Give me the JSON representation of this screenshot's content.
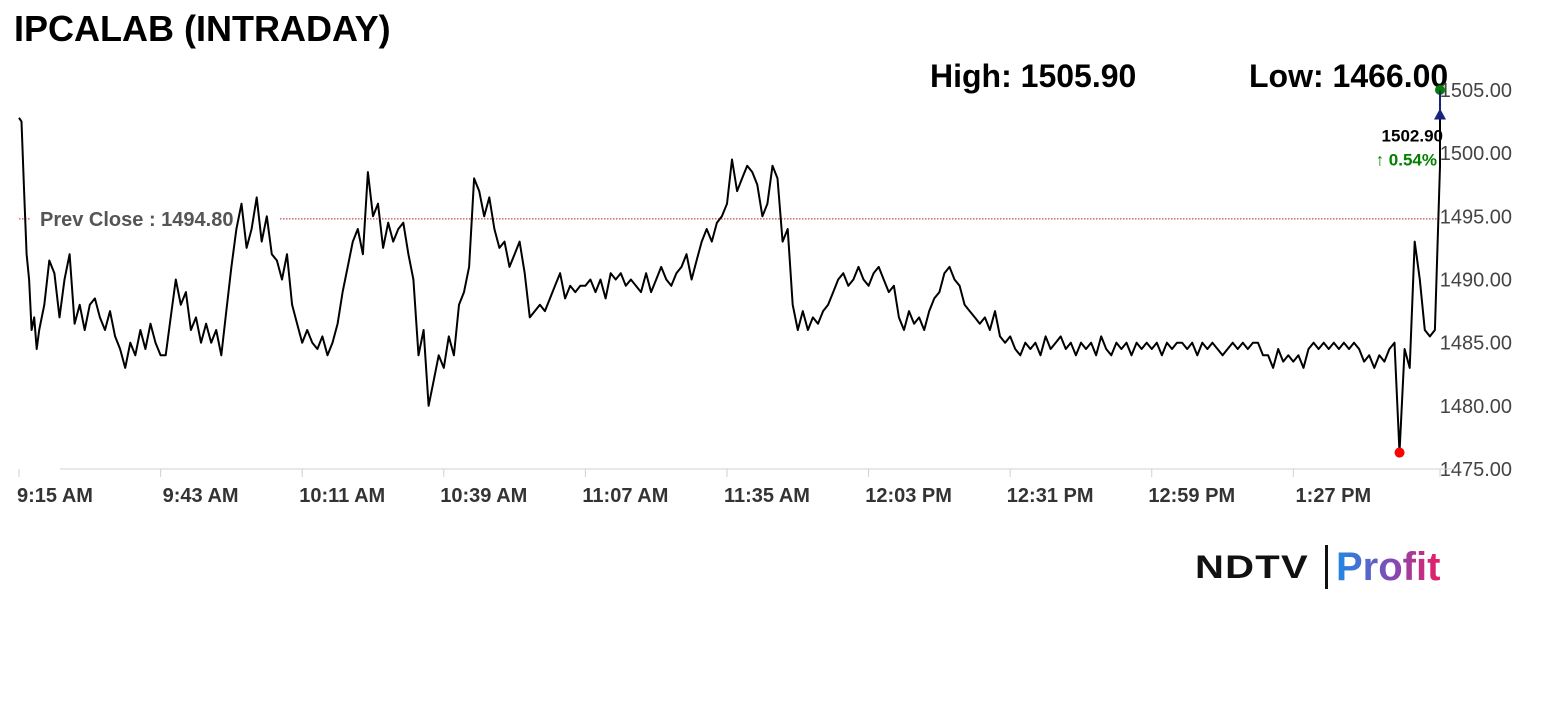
{
  "header": {
    "title": "IPCALAB (INTRADAY)",
    "high_label": "High: 1505.90",
    "low_label": "Low: 1466.00"
  },
  "logo": {
    "ndtv": "NDTV",
    "profit": "Profit"
  },
  "chart_data": {
    "type": "line",
    "title": "IPCALAB (INTRADAY)",
    "ylim": [
      1475,
      1505
    ],
    "yticks": [
      "1505.00",
      "1500.00",
      "1495.00",
      "1490.00",
      "1485.00",
      "1480.00",
      "1475.00"
    ],
    "yticks_values": [
      1505,
      1500,
      1495,
      1490,
      1485,
      1480,
      1475
    ],
    "xticks": [
      "9:15 AM",
      "9:43 AM",
      "10:11 AM",
      "10:39 AM",
      "11:07 AM",
      "11:35 AM",
      "12:03 PM",
      "12:31 PM",
      "12:59 PM",
      "1:27 PM"
    ],
    "xticks_minutes": [
      0,
      28,
      56,
      84,
      112,
      140,
      168,
      196,
      224,
      252
    ],
    "xlim_minutes": [
      0,
      281
    ],
    "prev_close": {
      "label": "Prev Close : 1494.80",
      "value": 1494.8
    },
    "last_price": {
      "label": "1502.90",
      "value": 1502.9
    },
    "change": {
      "label": "↑ 0.54%",
      "color": "#008000"
    },
    "marker_high": {
      "value": 1505.0,
      "color": "#008000"
    },
    "marker_low": {
      "value": 1476.3,
      "color": "#ff0000"
    },
    "line_color": "#000000",
    "prev_close_color": "#b22222",
    "series": [
      {
        "values": [
          [
            0,
            1502.8
          ],
          [
            0.5,
            1502.5
          ],
          [
            1,
            1497
          ],
          [
            1.5,
            1492
          ],
          [
            2,
            1490
          ],
          [
            2.5,
            1486
          ],
          [
            3,
            1487
          ],
          [
            3.5,
            1484.5
          ],
          [
            4,
            1486
          ],
          [
            5,
            1488
          ],
          [
            6,
            1491.5
          ],
          [
            7,
            1490.5
          ],
          [
            8,
            1487
          ],
          [
            9,
            1490
          ],
          [
            10,
            1492
          ],
          [
            11,
            1486.5
          ],
          [
            12,
            1488
          ],
          [
            13,
            1486
          ],
          [
            14,
            1488
          ],
          [
            15,
            1488.5
          ],
          [
            16,
            1487
          ],
          [
            17,
            1486
          ],
          [
            18,
            1487.5
          ],
          [
            19,
            1485.5
          ],
          [
            20,
            1484.5
          ],
          [
            21,
            1483
          ],
          [
            22,
            1485
          ],
          [
            23,
            1484
          ],
          [
            24,
            1486
          ],
          [
            25,
            1484.5
          ],
          [
            26,
            1486.5
          ],
          [
            27,
            1485
          ],
          [
            28,
            1484
          ],
          [
            29,
            1484
          ],
          [
            30,
            1487
          ],
          [
            31,
            1490
          ],
          [
            32,
            1488
          ],
          [
            33,
            1489
          ],
          [
            34,
            1486
          ],
          [
            35,
            1487
          ],
          [
            36,
            1485
          ],
          [
            37,
            1486.5
          ],
          [
            38,
            1485
          ],
          [
            39,
            1486
          ],
          [
            40,
            1484
          ],
          [
            41,
            1487.5
          ],
          [
            42,
            1491
          ],
          [
            43,
            1494
          ],
          [
            44,
            1496
          ],
          [
            45,
            1492.5
          ],
          [
            46,
            1494
          ],
          [
            47,
            1496.5
          ],
          [
            48,
            1493
          ],
          [
            49,
            1495
          ],
          [
            50,
            1492
          ],
          [
            51,
            1491.5
          ],
          [
            52,
            1490
          ],
          [
            53,
            1492
          ],
          [
            54,
            1488
          ],
          [
            55,
            1486.5
          ],
          [
            56,
            1485
          ],
          [
            57,
            1486
          ],
          [
            58,
            1485
          ],
          [
            59,
            1484.5
          ],
          [
            60,
            1485.5
          ],
          [
            61,
            1484
          ],
          [
            62,
            1485
          ],
          [
            63,
            1486.5
          ],
          [
            64,
            1489
          ],
          [
            65,
            1491
          ],
          [
            66,
            1493
          ],
          [
            67,
            1494
          ],
          [
            68,
            1492
          ],
          [
            69,
            1498.5
          ],
          [
            70,
            1495
          ],
          [
            71,
            1496
          ],
          [
            72,
            1492.5
          ],
          [
            73,
            1494.5
          ],
          [
            74,
            1493
          ],
          [
            75,
            1494
          ],
          [
            76,
            1494.5
          ],
          [
            77,
            1492
          ],
          [
            78,
            1490
          ],
          [
            79,
            1484
          ],
          [
            80,
            1486
          ],
          [
            81,
            1480
          ],
          [
            82,
            1482
          ],
          [
            83,
            1484
          ],
          [
            84,
            1483
          ],
          [
            85,
            1485.5
          ],
          [
            86,
            1484
          ],
          [
            87,
            1488
          ],
          [
            88,
            1489
          ],
          [
            89,
            1491
          ],
          [
            90,
            1498
          ],
          [
            91,
            1497
          ],
          [
            92,
            1495
          ],
          [
            93,
            1496.5
          ],
          [
            94,
            1494
          ],
          [
            95,
            1492.5
          ],
          [
            96,
            1493
          ],
          [
            97,
            1491
          ],
          [
            98,
            1492
          ],
          [
            99,
            1493
          ],
          [
            100,
            1490.5
          ],
          [
            101,
            1487
          ],
          [
            102,
            1487.5
          ],
          [
            103,
            1488
          ],
          [
            104,
            1487.5
          ],
          [
            105,
            1488.5
          ],
          [
            106,
            1489.5
          ],
          [
            107,
            1490.5
          ],
          [
            108,
            1488.5
          ],
          [
            109,
            1489.5
          ],
          [
            110,
            1489
          ],
          [
            111,
            1489.5
          ],
          [
            112,
            1489.5
          ],
          [
            113,
            1490
          ],
          [
            114,
            1489
          ],
          [
            115,
            1490
          ],
          [
            116,
            1488.5
          ],
          [
            117,
            1490.5
          ],
          [
            118,
            1490
          ],
          [
            119,
            1490.5
          ],
          [
            120,
            1489.5
          ],
          [
            121,
            1490
          ],
          [
            122,
            1489.5
          ],
          [
            123,
            1489
          ],
          [
            124,
            1490.5
          ],
          [
            125,
            1489
          ],
          [
            126,
            1490
          ],
          [
            127,
            1491
          ],
          [
            128,
            1490
          ],
          [
            129,
            1489.5
          ],
          [
            130,
            1490.5
          ],
          [
            131,
            1491
          ],
          [
            132,
            1492
          ],
          [
            133,
            1490
          ],
          [
            134,
            1491.5
          ],
          [
            135,
            1493
          ],
          [
            136,
            1494
          ],
          [
            137,
            1493
          ],
          [
            138,
            1494.5
          ],
          [
            139,
            1495
          ],
          [
            140,
            1496
          ],
          [
            141,
            1499.5
          ],
          [
            142,
            1497
          ],
          [
            143,
            1498
          ],
          [
            144,
            1499
          ],
          [
            145,
            1498.5
          ],
          [
            146,
            1497.5
          ],
          [
            147,
            1495
          ],
          [
            148,
            1496
          ],
          [
            149,
            1499
          ],
          [
            150,
            1498
          ],
          [
            151,
            1493
          ],
          [
            152,
            1494
          ],
          [
            153,
            1488
          ],
          [
            154,
            1486
          ],
          [
            155,
            1487.5
          ],
          [
            156,
            1486
          ],
          [
            157,
            1487
          ],
          [
            158,
            1486.5
          ],
          [
            159,
            1487.5
          ],
          [
            160,
            1488
          ],
          [
            161,
            1489
          ],
          [
            162,
            1490
          ],
          [
            163,
            1490.5
          ],
          [
            164,
            1489.5
          ],
          [
            165,
            1490
          ],
          [
            166,
            1491
          ],
          [
            167,
            1490
          ],
          [
            168,
            1489.5
          ],
          [
            169,
            1490.5
          ],
          [
            170,
            1491
          ],
          [
            171,
            1490
          ],
          [
            172,
            1489
          ],
          [
            173,
            1489.5
          ],
          [
            174,
            1487
          ],
          [
            175,
            1486
          ],
          [
            176,
            1487.5
          ],
          [
            177,
            1486.5
          ],
          [
            178,
            1487
          ],
          [
            179,
            1486
          ],
          [
            180,
            1487.5
          ],
          [
            181,
            1488.5
          ],
          [
            182,
            1489
          ],
          [
            183,
            1490.5
          ],
          [
            184,
            1491
          ],
          [
            185,
            1490
          ],
          [
            186,
            1489.5
          ],
          [
            187,
            1488
          ],
          [
            188,
            1487.5
          ],
          [
            189,
            1487
          ],
          [
            190,
            1486.5
          ],
          [
            191,
            1487
          ],
          [
            192,
            1486
          ],
          [
            193,
            1487.5
          ],
          [
            194,
            1485.5
          ],
          [
            195,
            1485
          ],
          [
            196,
            1485.5
          ],
          [
            197,
            1484.5
          ],
          [
            198,
            1484
          ],
          [
            199,
            1485
          ],
          [
            200,
            1484.5
          ],
          [
            201,
            1485
          ],
          [
            202,
            1484
          ],
          [
            203,
            1485.5
          ],
          [
            204,
            1484.5
          ],
          [
            205,
            1485
          ],
          [
            206,
            1485.5
          ],
          [
            207,
            1484.5
          ],
          [
            208,
            1485
          ],
          [
            209,
            1484
          ],
          [
            210,
            1485
          ],
          [
            211,
            1484.5
          ],
          [
            212,
            1485
          ],
          [
            213,
            1484
          ],
          [
            214,
            1485.5
          ],
          [
            215,
            1484.5
          ],
          [
            216,
            1484
          ],
          [
            217,
            1485
          ],
          [
            218,
            1484.5
          ],
          [
            219,
            1485
          ],
          [
            220,
            1484
          ],
          [
            221,
            1485
          ],
          [
            222,
            1484.5
          ],
          [
            223,
            1485
          ],
          [
            224,
            1484.5
          ],
          [
            225,
            1485
          ],
          [
            226,
            1484
          ],
          [
            227,
            1485
          ],
          [
            228,
            1484.5
          ],
          [
            229,
            1485
          ],
          [
            230,
            1485
          ],
          [
            231,
            1484.5
          ],
          [
            232,
            1485
          ],
          [
            233,
            1484
          ],
          [
            234,
            1485
          ],
          [
            235,
            1484.5
          ],
          [
            236,
            1485
          ],
          [
            237,
            1484.5
          ],
          [
            238,
            1484
          ],
          [
            239,
            1484.5
          ],
          [
            240,
            1485
          ],
          [
            241,
            1484.5
          ],
          [
            242,
            1485
          ],
          [
            243,
            1484.5
          ],
          [
            244,
            1485
          ],
          [
            245,
            1485
          ],
          [
            246,
            1484
          ],
          [
            247,
            1484
          ],
          [
            248,
            1483
          ],
          [
            249,
            1484.5
          ],
          [
            250,
            1483.5
          ],
          [
            251,
            1484
          ],
          [
            252,
            1483.5
          ],
          [
            253,
            1484
          ],
          [
            254,
            1483
          ],
          [
            255,
            1484.5
          ],
          [
            256,
            1485
          ],
          [
            257,
            1484.5
          ],
          [
            258,
            1485
          ],
          [
            259,
            1484.5
          ],
          [
            260,
            1485
          ],
          [
            261,
            1484.5
          ],
          [
            262,
            1485
          ],
          [
            263,
            1484.5
          ],
          [
            264,
            1485
          ],
          [
            265,
            1484.5
          ],
          [
            266,
            1483.5
          ],
          [
            267,
            1484
          ],
          [
            268,
            1483
          ],
          [
            269,
            1484
          ],
          [
            270,
            1483.5
          ],
          [
            271,
            1484.5
          ],
          [
            272,
            1485
          ],
          [
            273,
            1476.3
          ],
          [
            274,
            1484.5
          ],
          [
            275,
            1483
          ],
          [
            276,
            1493
          ],
          [
            277,
            1490
          ],
          [
            278,
            1486
          ],
          [
            279,
            1485.5
          ],
          [
            280,
            1486
          ],
          [
            281,
            1499
          ],
          [
            281,
            1502.9
          ]
        ]
      }
    ]
  }
}
